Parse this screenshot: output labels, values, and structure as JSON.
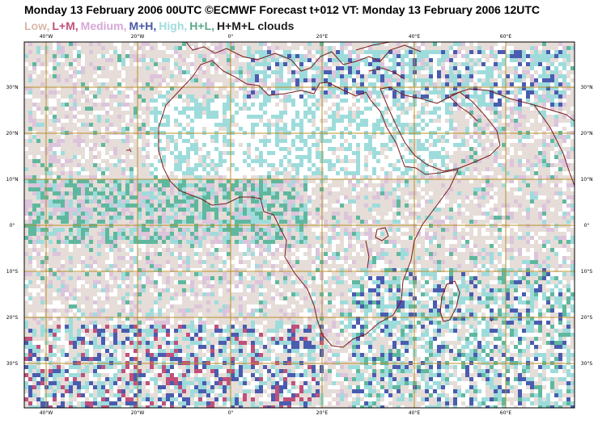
{
  "title": "Monday 13 February 2006 00UTC ©ECMWF Forecast t+012 VT: Monday 13 February 2006 12UTC",
  "legend": [
    {
      "label": "Low,",
      "color": "#d9b8a8"
    },
    {
      "label": "L+M,",
      "color": "#c0507a"
    },
    {
      "label": "Medium,",
      "color": "#d6a8d6"
    },
    {
      "label": "M+H,",
      "color": "#4858a8"
    },
    {
      "label": "High,",
      "color": "#a0dcdc"
    },
    {
      "label": "H+L,",
      "color": "#5aa888"
    },
    {
      "label": "H+M+L clouds",
      "color": "#202020"
    }
  ],
  "map": {
    "lon_labels": [
      "40°W",
      "20°W",
      "0°",
      "20°E",
      "40°E",
      "60°E"
    ],
    "lat_labels": [
      "30°N",
      "20°N",
      "10°N",
      "0°",
      "10°S",
      "20°S",
      "30°S"
    ],
    "colors": {
      "grid": "#b8902a",
      "coast": "#7a1a1a",
      "frame": "#000000",
      "low": "#e6ddd8",
      "high": "#9edcdc",
      "hl": "#5fb89e",
      "medium": "#dcc4dc",
      "mh": "#4a5cb0",
      "lm": "#c0507a"
    }
  }
}
